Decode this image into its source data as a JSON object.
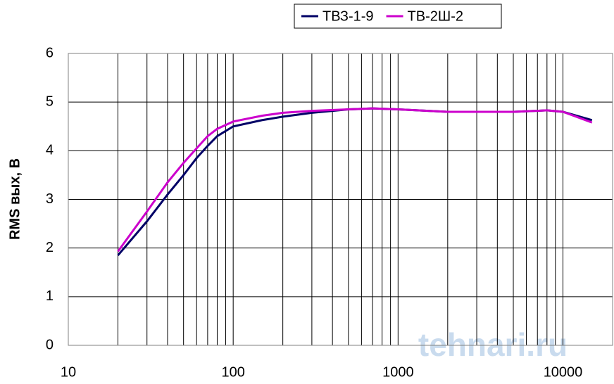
{
  "chart_data": {
    "type": "line",
    "ylabel": "RMS вых, В",
    "watermark": "tehnari.ru",
    "x": [
      20,
      30,
      40,
      50,
      60,
      70,
      80,
      100,
      150,
      200,
      300,
      500,
      700,
      1000,
      2000,
      5000,
      8000,
      10000,
      15000
    ],
    "series": [
      {
        "name": "ТВЗ-1-9",
        "color": "#000066",
        "values": [
          1.85,
          2.55,
          3.1,
          3.5,
          3.85,
          4.1,
          4.3,
          4.5,
          4.63,
          4.7,
          4.78,
          4.85,
          4.87,
          4.85,
          4.8,
          4.8,
          4.83,
          4.8,
          4.63
        ]
      },
      {
        "name": "ТВ-2Ш-2",
        "color": "#cc00cc",
        "values": [
          1.93,
          2.75,
          3.35,
          3.75,
          4.05,
          4.3,
          4.45,
          4.6,
          4.72,
          4.78,
          4.82,
          4.85,
          4.87,
          4.85,
          4.8,
          4.8,
          4.83,
          4.8,
          4.58
        ]
      }
    ],
    "xscale": "log",
    "xlim": [
      10,
      20000
    ],
    "xticks": [
      10,
      100,
      1000,
      10000
    ],
    "xgrid": [
      20,
      30,
      40,
      50,
      60,
      70,
      80,
      90,
      200,
      300,
      400,
      500,
      600,
      700,
      800,
      900,
      2000,
      3000,
      4000,
      5000,
      6000,
      7000,
      8000,
      9000
    ],
    "ylim": [
      0,
      6
    ],
    "yticks": [
      0,
      1,
      2,
      3,
      4,
      5,
      6
    ],
    "grid": true,
    "legend": "top"
  }
}
